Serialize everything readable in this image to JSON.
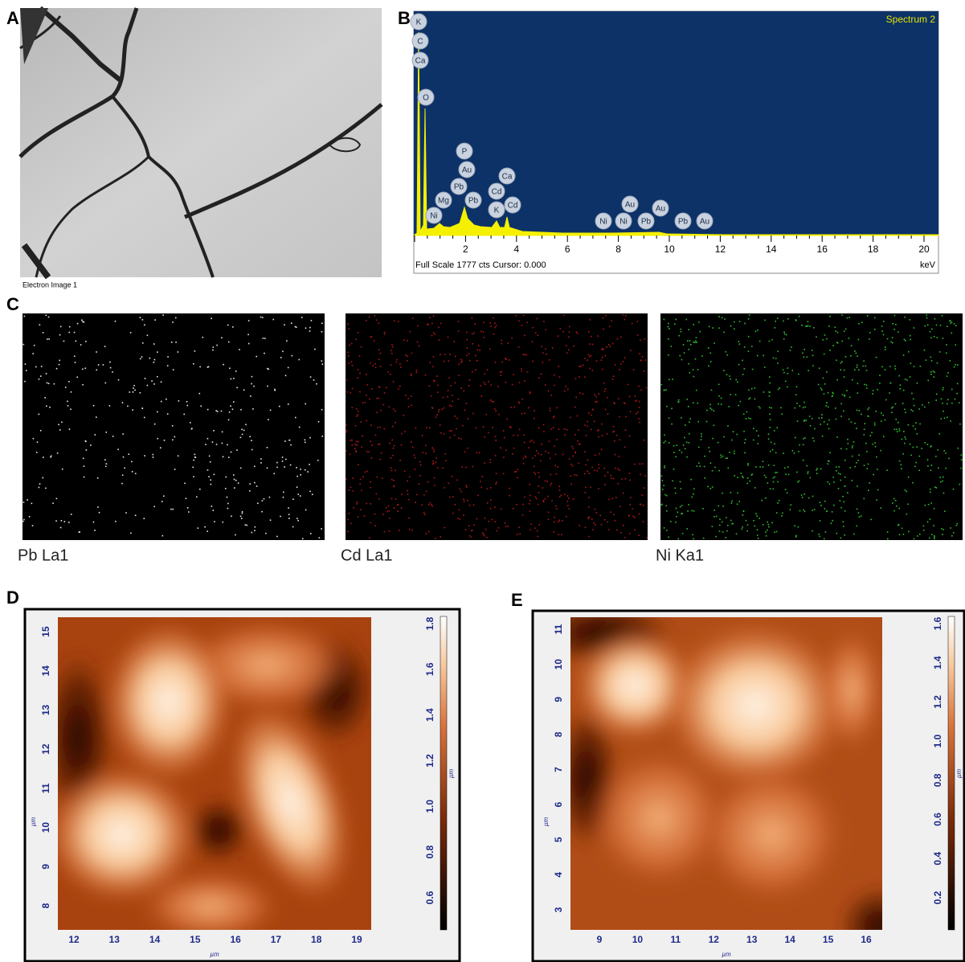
{
  "panel_labels": [
    "A",
    "B",
    "C",
    "D",
    "E"
  ],
  "sem": {
    "caption": "Electron Image 1"
  },
  "spectrum": {
    "title": "Spectrum 2",
    "x_ticks": [
      "2",
      "4",
      "6",
      "8",
      "10",
      "12",
      "14",
      "16",
      "18",
      "20"
    ],
    "x_unit": "keV",
    "footer": "Full Scale 1777 cts Cursor: 0.000",
    "peak_labels": [
      "K",
      "C",
      "Ca",
      "O",
      "P",
      "Au",
      "Pb",
      "Mg",
      "Pb",
      "Ni",
      "Ca",
      "Cd",
      "K",
      "Cd",
      "Ni",
      "Ni",
      "Au",
      "Pb",
      "Au",
      "Pb",
      "Au"
    ]
  },
  "maps": [
    {
      "label": "Pb La1"
    },
    {
      "label": "Cd La1"
    },
    {
      "label": "Ni Ka1"
    }
  ],
  "afm": [
    {
      "unit": "µm",
      "x_ticks": [
        "12",
        "13",
        "14",
        "15",
        "16",
        "17",
        "18",
        "19"
      ],
      "y_ticks": [
        "8",
        "9",
        "10",
        "11",
        "12",
        "13",
        "14",
        "15"
      ],
      "colorbar_ticks": [
        "0.6",
        "0.8",
        "1.0",
        "1.2",
        "1.4",
        "1.6",
        "1.8"
      ]
    },
    {
      "unit": "µm",
      "x_ticks": [
        "9",
        "10",
        "11",
        "12",
        "13",
        "14",
        "15",
        "16"
      ],
      "y_ticks": [
        "3",
        "4",
        "5",
        "6",
        "7",
        "8",
        "9",
        "10",
        "11"
      ],
      "colorbar_ticks": [
        "0.2",
        "0.4",
        "0.6",
        "0.8",
        "1.0",
        "1.2",
        "1.4",
        "1.6"
      ]
    }
  ]
}
